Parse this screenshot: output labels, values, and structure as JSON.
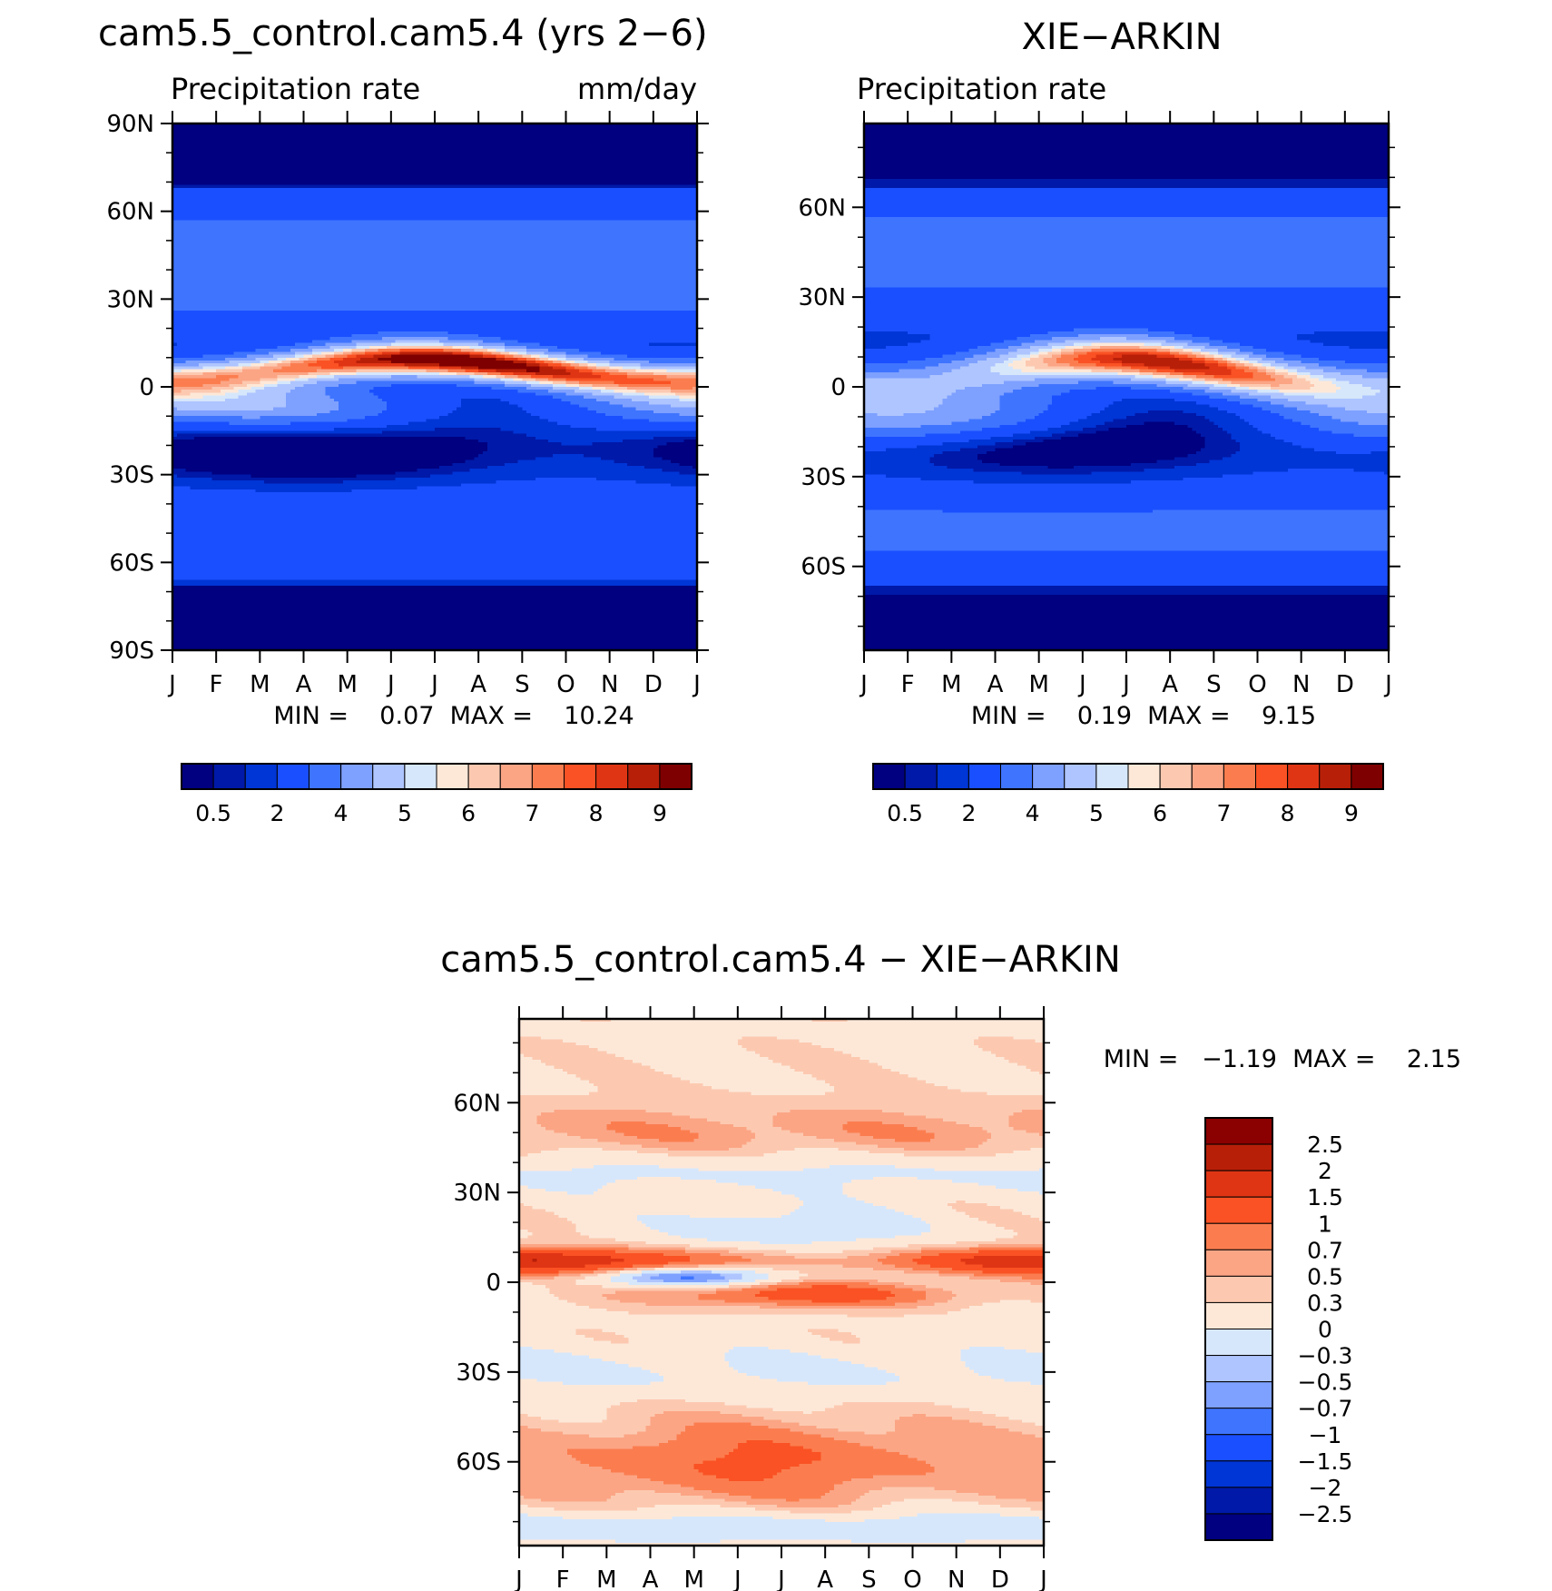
{
  "chart_data": [
    {
      "type": "heatmap",
      "title": "cam5.5_control.cam5.4 (yrs 2−6)",
      "subtitle_left": "Precipitation rate",
      "subtitle_right": "mm/day",
      "x_tick_labels": [
        "J",
        "F",
        "M",
        "A",
        "M",
        "J",
        "J",
        "A",
        "S",
        "O",
        "N",
        "D",
        "J"
      ],
      "y_tick_labels": [
        "90N",
        "60N",
        "30N",
        "0",
        "30S",
        "60S",
        "90S"
      ],
      "y_tick_values": [
        90,
        60,
        30,
        0,
        -30,
        -60,
        -90
      ],
      "ylim": [
        -90,
        90
      ],
      "stats_text": "MIN =    0.07  MAX =    10.24",
      "min": 0.07,
      "max": 10.24,
      "colorbar_labels": [
        "0.5",
        "2",
        "4",
        "5",
        "6",
        "7",
        "8",
        "9"
      ],
      "field": "model"
    },
    {
      "type": "heatmap",
      "title": "XIE−ARKIN",
      "subtitle_left": "Precipitation rate",
      "x_tick_labels": [
        "J",
        "F",
        "M",
        "A",
        "M",
        "J",
        "J",
        "A",
        "S",
        "O",
        "N",
        "D",
        "J"
      ],
      "y_tick_labels": [
        "60N",
        "30N",
        "0",
        "30S",
        "60S"
      ],
      "y_tick_values": [
        60,
        30,
        0,
        -30,
        -60
      ],
      "ylim": [
        -88,
        88
      ],
      "stats_text": "MIN =    0.19  MAX =    9.15",
      "min": 0.19,
      "max": 9.15,
      "colorbar_labels": [
        "0.5",
        "2",
        "4",
        "5",
        "6",
        "7",
        "8",
        "9"
      ],
      "field": "obs"
    },
    {
      "type": "heatmap",
      "title": "cam5.5_control.cam5.4 − XIE−ARKIN",
      "x_tick_labels": [
        "J",
        "F",
        "M",
        "A",
        "M",
        "J",
        "J",
        "A",
        "S",
        "O",
        "N",
        "D",
        "J"
      ],
      "y_tick_labels": [
        "60N",
        "30N",
        "0",
        "30S",
        "60S"
      ],
      "y_tick_values": [
        60,
        30,
        0,
        -30,
        -60
      ],
      "ylim": [
        -88,
        88
      ],
      "stats_text": "MIN =   −1.19  MAX =    2.15",
      "min": -1.19,
      "max": 2.15,
      "colorbar_labels": [
        "2.5",
        "2",
        "1.5",
        "1",
        "0.7",
        "0.5",
        "0.3",
        "0",
        "−0.3",
        "−0.5",
        "−0.7",
        "−1",
        "−1.5",
        "−2",
        "−2.5"
      ],
      "field": "diff"
    }
  ],
  "colors": {
    "abs_palette": [
      "#000080",
      "#0019a8",
      "#0035d6",
      "#1a4fff",
      "#3f74ff",
      "#7ea0ff",
      "#aec5ff",
      "#d6e7fb",
      "#fde8d8",
      "#fcc9b0",
      "#fba585",
      "#fb7d4f",
      "#fa5224",
      "#e03514",
      "#b81f08",
      "#7f0000"
    ],
    "diff_palette": [
      "#8b0000",
      "#b81f08",
      "#e03514",
      "#fa5224",
      "#fb7d4f",
      "#fba585",
      "#fcc9b0",
      "#fde8d8",
      "#d6e7fb",
      "#aec5ff",
      "#7ea0ff",
      "#3f74ff",
      "#1a4fff",
      "#0035d6",
      "#0019a8",
      "#000080"
    ]
  }
}
